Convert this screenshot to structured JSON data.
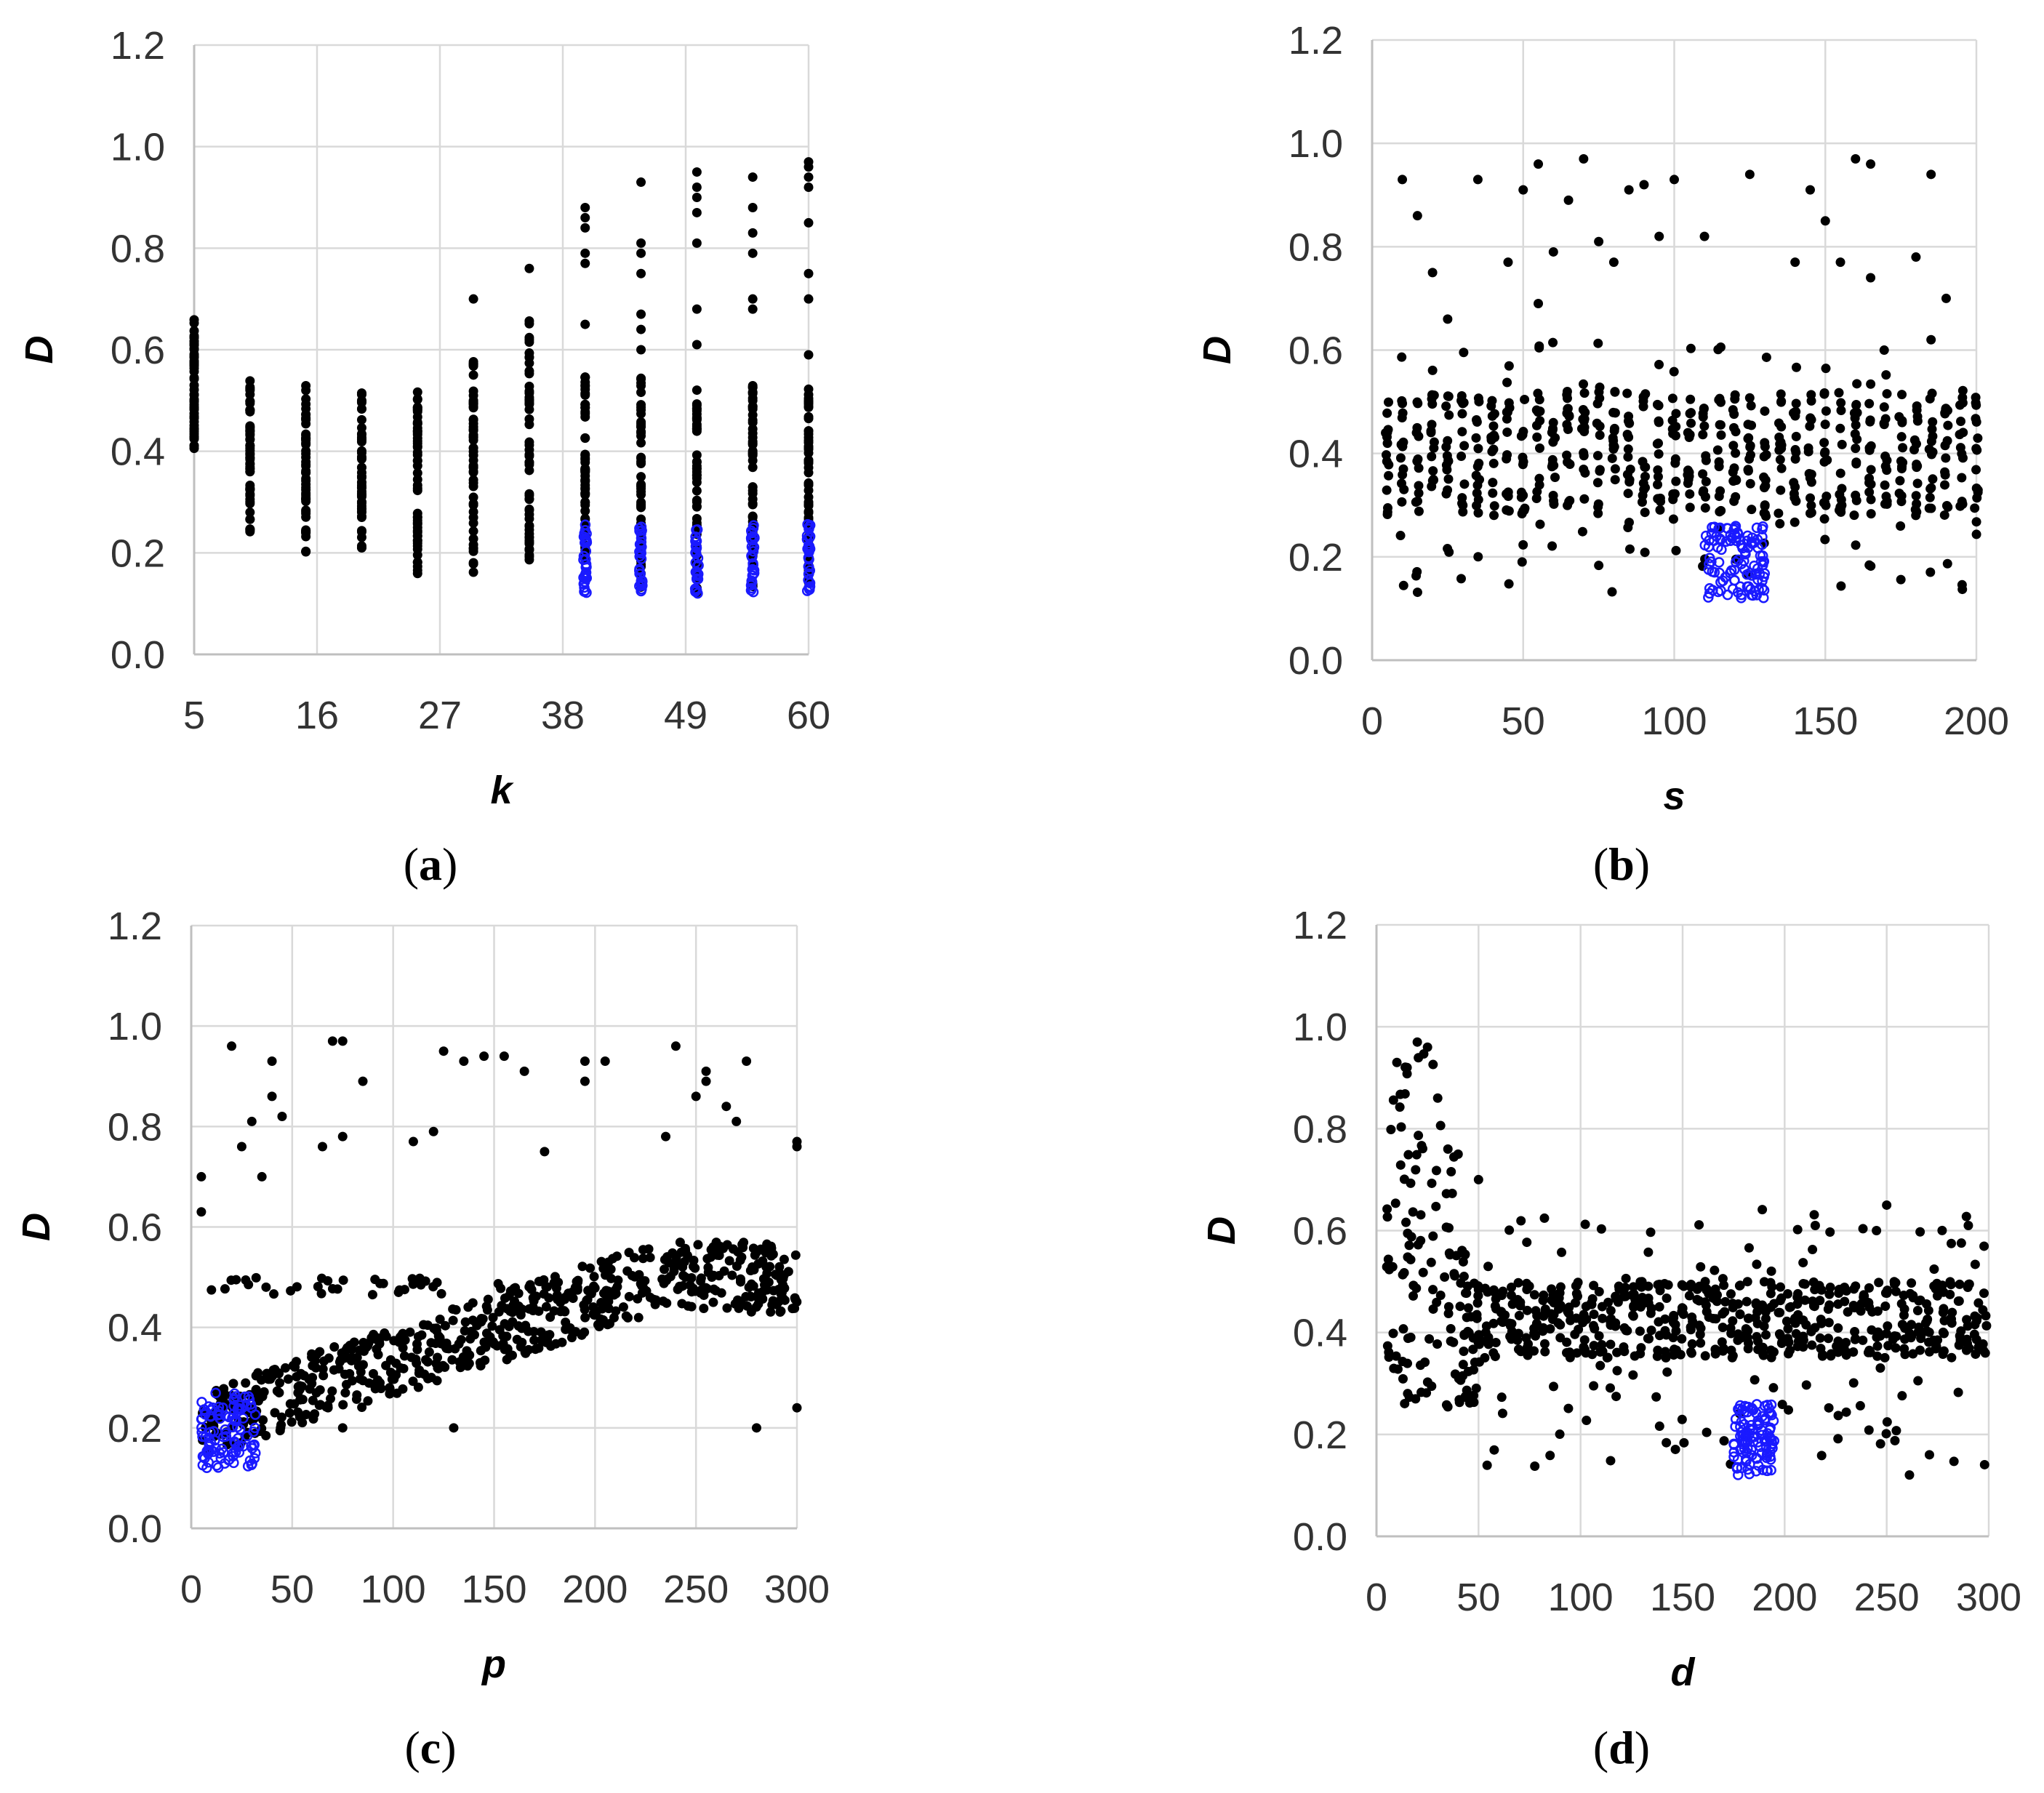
{
  "colors": {
    "black_series": "#000000",
    "blue_series": "#1a1aff",
    "grid": "#d9d9d9"
  },
  "chart_data": [
    {
      "id": "a",
      "type": "scatter",
      "caption": "(a)",
      "caption_letter": "a",
      "xlabel": "k",
      "ylabel": "D",
      "xlim": [
        5,
        60
      ],
      "ylim": [
        0,
        1.2
      ],
      "x_ticks": [
        5,
        16,
        27,
        38,
        49,
        60
      ],
      "y_ticks": [
        "0.0",
        "0.2",
        "0.4",
        "0.6",
        "0.8",
        "1.0",
        "1.2"
      ],
      "x_columns": [
        5,
        10,
        15,
        20,
        25,
        30,
        35,
        40,
        45,
        50,
        55,
        60
      ],
      "black_ranges": [
        [
          0.38,
          0.66
        ],
        [
          0.24,
          0.54
        ],
        [
          0.2,
          0.53
        ],
        [
          0.2,
          0.52
        ],
        [
          0.15,
          0.52
        ],
        [
          0.16,
          0.58
        ],
        [
          0.18,
          0.66
        ],
        [
          0.18,
          0.56
        ],
        [
          0.13,
          0.56
        ],
        [
          0.12,
          0.53
        ],
        [
          0.13,
          0.53
        ],
        [
          0.12,
          0.53
        ]
      ],
      "black_outliers": [
        [
          30,
          0.7
        ],
        [
          35,
          0.76
        ],
        [
          40,
          0.65
        ],
        [
          40,
          0.77
        ],
        [
          40,
          0.79
        ],
        [
          40,
          0.84
        ],
        [
          40,
          0.86
        ],
        [
          40,
          0.88
        ],
        [
          45,
          0.6
        ],
        [
          45,
          0.64
        ],
        [
          45,
          0.67
        ],
        [
          45,
          0.75
        ],
        [
          45,
          0.79
        ],
        [
          45,
          0.81
        ],
        [
          45,
          0.93
        ],
        [
          50,
          0.61
        ],
        [
          50,
          0.68
        ],
        [
          50,
          0.81
        ],
        [
          50,
          0.87
        ],
        [
          50,
          0.9
        ],
        [
          50,
          0.92
        ],
        [
          50,
          0.95
        ],
        [
          55,
          0.68
        ],
        [
          55,
          0.7
        ],
        [
          55,
          0.79
        ],
        [
          55,
          0.83
        ],
        [
          55,
          0.88
        ],
        [
          55,
          0.94
        ],
        [
          60,
          0.59
        ],
        [
          60,
          0.7
        ],
        [
          60,
          0.75
        ],
        [
          60,
          0.85
        ],
        [
          60,
          0.92
        ],
        [
          60,
          0.94
        ],
        [
          60,
          0.96
        ],
        [
          60,
          0.97
        ]
      ],
      "blue_series": {
        "x": [
          40,
          45,
          50,
          55,
          60
        ],
        "range": [
          0.12,
          0.26
        ]
      }
    },
    {
      "id": "b",
      "type": "scatter",
      "caption": "(b)",
      "caption_letter": "b",
      "xlabel": "s",
      "ylabel": "D",
      "xlim": [
        0,
        200
      ],
      "ylim": [
        0,
        1.2
      ],
      "x_ticks": [
        0,
        50,
        100,
        150,
        200
      ],
      "y_ticks": [
        "0.0",
        "0.2",
        "0.4",
        "0.6",
        "0.8",
        "1.0",
        "1.2"
      ],
      "black_band": {
        "x_range": [
          5,
          200
        ],
        "core": [
          0.28,
          0.52
        ],
        "spread": [
          0.13,
          0.62
        ]
      },
      "black_outliers": [
        [
          10,
          0.93
        ],
        [
          15,
          0.86
        ],
        [
          35,
          0.93
        ],
        [
          45,
          0.77
        ],
        [
          50,
          0.91
        ],
        [
          55,
          0.96
        ],
        [
          60,
          0.79
        ],
        [
          65,
          0.89
        ],
        [
          70,
          0.97
        ],
        [
          75,
          0.81
        ],
        [
          80,
          0.77
        ],
        [
          85,
          0.91
        ],
        [
          90,
          0.92
        ],
        [
          95,
          0.82
        ],
        [
          100,
          0.93
        ],
        [
          110,
          0.82
        ],
        [
          125,
          0.94
        ],
        [
          140,
          0.77
        ],
        [
          145,
          0.91
        ],
        [
          150,
          0.85
        ],
        [
          155,
          0.77
        ],
        [
          160,
          0.97
        ],
        [
          165,
          0.96
        ],
        [
          165,
          0.74
        ],
        [
          180,
          0.78
        ],
        [
          185,
          0.94
        ],
        [
          190,
          0.7
        ],
        [
          20,
          0.75
        ],
        [
          55,
          0.69
        ],
        [
          25,
          0.66
        ],
        [
          185,
          0.62
        ]
      ],
      "blue_series": {
        "x_range": [
          110,
          130
        ],
        "range": [
          0.12,
          0.26
        ]
      }
    },
    {
      "id": "c",
      "type": "scatter",
      "caption": "(c)",
      "caption_letter": "c",
      "xlabel": "p",
      "ylabel": "D",
      "xlim": [
        0,
        300
      ],
      "ylim": [
        0,
        1.2
      ],
      "x_ticks": [
        0,
        50,
        100,
        150,
        200,
        250,
        300
      ],
      "y_ticks": [
        "0.0",
        "0.2",
        "0.4",
        "0.6",
        "0.8",
        "1.0",
        "1.2"
      ],
      "black_trend": {
        "x_range": [
          5,
          300
        ],
        "start": 0.2,
        "end": 0.5,
        "flat_band": [
          0.46,
          0.5
        ]
      },
      "black_outliers": [
        [
          5,
          0.7
        ],
        [
          5,
          0.63
        ],
        [
          20,
          0.96
        ],
        [
          25,
          0.76
        ],
        [
          30,
          0.81
        ],
        [
          35,
          0.7
        ],
        [
          40,
          0.86
        ],
        [
          40,
          0.93
        ],
        [
          45,
          0.82
        ],
        [
          65,
          0.76
        ],
        [
          70,
          0.97
        ],
        [
          75,
          0.97
        ],
        [
          75,
          0.78
        ],
        [
          85,
          0.89
        ],
        [
          110,
          0.77
        ],
        [
          120,
          0.79
        ],
        [
          125,
          0.95
        ],
        [
          135,
          0.93
        ],
        [
          145,
          0.94
        ],
        [
          155,
          0.94
        ],
        [
          165,
          0.91
        ],
        [
          175,
          0.75
        ],
        [
          195,
          0.93
        ],
        [
          195,
          0.89
        ],
        [
          205,
          0.93
        ],
        [
          235,
          0.78
        ],
        [
          240,
          0.96
        ],
        [
          250,
          0.86
        ],
        [
          255,
          0.91
        ],
        [
          255,
          0.89
        ],
        [
          265,
          0.84
        ],
        [
          270,
          0.81
        ],
        [
          275,
          0.93
        ],
        [
          300,
          0.77
        ],
        [
          300,
          0.76
        ],
        [
          130,
          0.2
        ],
        [
          75,
          0.2
        ],
        [
          280,
          0.2
        ],
        [
          300,
          0.24
        ]
      ],
      "blue_series": {
        "x_range": [
          5,
          32
        ],
        "range": [
          0.12,
          0.27
        ]
      }
    },
    {
      "id": "d",
      "type": "scatter",
      "caption": "(d)",
      "caption_letter": "d",
      "xlabel": "d",
      "ylabel": "D",
      "xlim": [
        0,
        300
      ],
      "ylim": [
        0,
        1.2
      ],
      "x_ticks": [
        0,
        50,
        100,
        150,
        200,
        250,
        300
      ],
      "y_ticks": [
        "0.0",
        "0.2",
        "0.4",
        "0.6",
        "0.8",
        "1.0",
        "1.2"
      ],
      "black_peak": {
        "x_range": [
          5,
          50
        ],
        "low": 0.25,
        "high": 0.98
      },
      "black_band": {
        "x_range": [
          50,
          300
        ],
        "core": [
          0.35,
          0.5
        ],
        "spread": [
          0.12,
          0.65
        ]
      },
      "black_outliers": [
        [
          10,
          0.93
        ],
        [
          15,
          0.92
        ],
        [
          20,
          0.97
        ],
        [
          25,
          0.96
        ],
        [
          30,
          0.86
        ],
        [
          35,
          0.76
        ],
        [
          40,
          0.75
        ],
        [
          50,
          0.7
        ],
        [
          250,
          0.65
        ],
        [
          245,
          0.6
        ],
        [
          215,
          0.61
        ],
        [
          290,
          0.61
        ]
      ],
      "blue_series": {
        "x_range": [
          175,
          195
        ],
        "range": [
          0.12,
          0.26
        ]
      }
    }
  ]
}
